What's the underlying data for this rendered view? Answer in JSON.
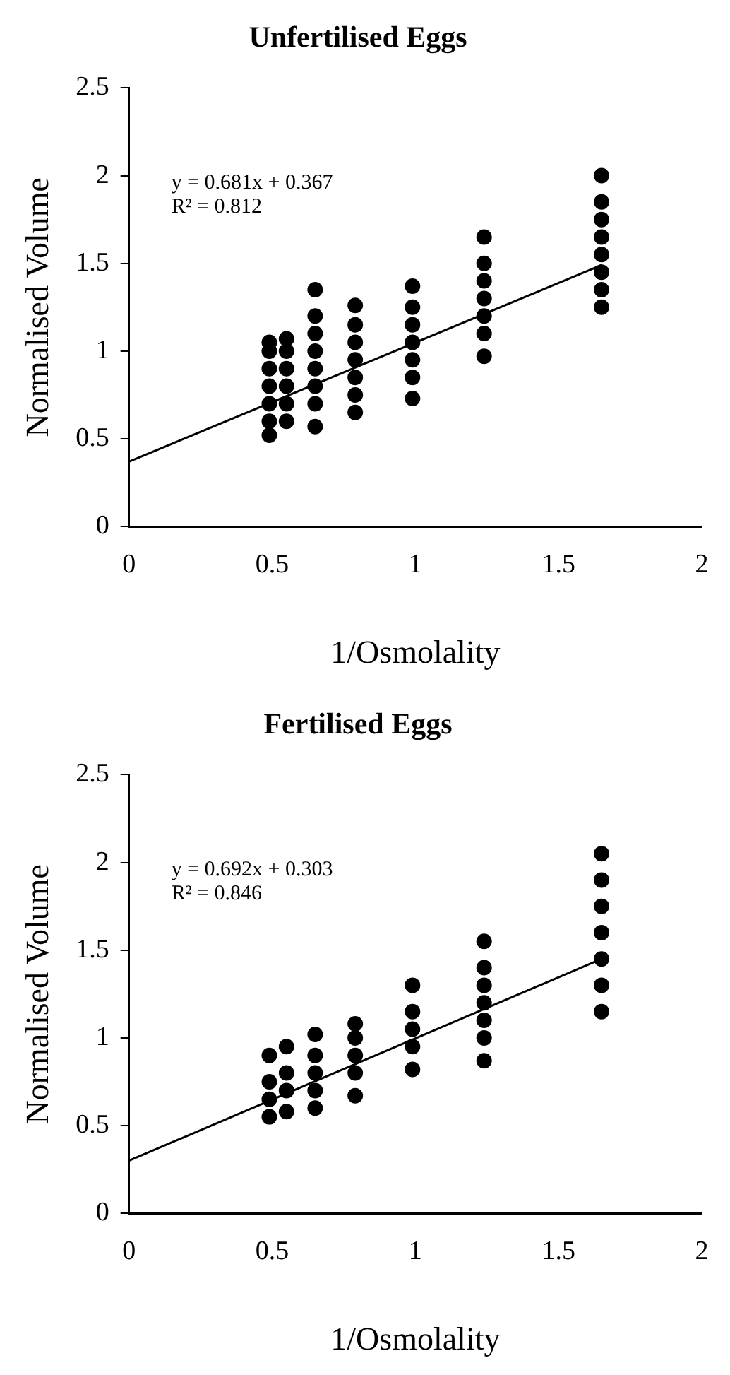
{
  "chart_data": [
    {
      "type": "scatter",
      "title": "Unfertilised Eggs",
      "xlabel": "1/Osmolality",
      "ylabel": "Normalised Volume",
      "xlim": [
        0,
        2
      ],
      "xticks": [
        0,
        0.5,
        1,
        1.5,
        2
      ],
      "ylim": [
        0,
        2.5
      ],
      "yticks": [
        0,
        0.5,
        1,
        1.5,
        2,
        2.5
      ],
      "grid": false,
      "legend": false,
      "annotations": [
        "y = 0.681x + 0.367",
        "R² = 0.812"
      ],
      "series": [
        {
          "type": "scatter",
          "marker": "circle",
          "color": "#000000",
          "x": [
            0.49,
            0.49,
            0.49,
            0.49,
            0.49,
            0.49,
            0.49,
            0.55,
            0.55,
            0.55,
            0.55,
            0.55,
            0.55,
            0.65,
            0.65,
            0.65,
            0.65,
            0.65,
            0.65,
            0.65,
            0.65,
            0.79,
            0.79,
            0.79,
            0.79,
            0.79,
            0.79,
            0.79,
            0.99,
            0.99,
            0.99,
            0.99,
            0.99,
            0.99,
            0.99,
            1.24,
            1.24,
            1.24,
            1.24,
            1.24,
            1.24,
            1.24,
            1.65,
            1.65,
            1.65,
            1.65,
            1.65,
            1.65,
            1.65,
            1.65
          ],
          "values": [
            0.52,
            0.6,
            0.7,
            0.8,
            0.9,
            1.0,
            1.05,
            0.6,
            0.7,
            0.8,
            0.9,
            1.0,
            1.07,
            0.57,
            0.7,
            0.8,
            0.9,
            1.0,
            1.1,
            1.2,
            1.35,
            0.65,
            0.75,
            0.85,
            0.95,
            1.05,
            1.15,
            1.26,
            0.73,
            0.85,
            0.95,
            1.05,
            1.15,
            1.25,
            1.37,
            0.97,
            1.1,
            1.2,
            1.3,
            1.4,
            1.5,
            1.65,
            1.25,
            1.35,
            1.45,
            1.55,
            1.65,
            1.75,
            1.85,
            2.0
          ]
        },
        {
          "type": "line",
          "color": "#000000",
          "x": [
            0,
            1.65
          ],
          "values": [
            0.37,
            1.49
          ]
        }
      ]
    },
    {
      "type": "scatter",
      "title": "Fertilised Eggs",
      "xlabel": "1/Osmolality",
      "ylabel": "Normalised Volume",
      "xlim": [
        0,
        2
      ],
      "xticks": [
        0,
        0.5,
        1,
        1.5,
        2
      ],
      "ylim": [
        0,
        2.5
      ],
      "yticks": [
        0,
        0.5,
        1,
        1.5,
        2,
        2.5
      ],
      "grid": false,
      "legend": false,
      "annotations": [
        "y = 0.692x + 0.303",
        "R² = 0.846"
      ],
      "series": [
        {
          "type": "scatter",
          "marker": "circle",
          "color": "#000000",
          "x": [
            0.49,
            0.49,
            0.49,
            0.49,
            0.55,
            0.55,
            0.55,
            0.55,
            0.65,
            0.65,
            0.65,
            0.65,
            0.65,
            0.79,
            0.79,
            0.79,
            0.79,
            0.79,
            0.99,
            0.99,
            0.99,
            0.99,
            0.99,
            1.24,
            1.24,
            1.24,
            1.24,
            1.24,
            1.24,
            1.24,
            1.65,
            1.65,
            1.65,
            1.65,
            1.65,
            1.65,
            1.65
          ],
          "values": [
            0.55,
            0.65,
            0.75,
            0.9,
            0.58,
            0.7,
            0.8,
            0.95,
            0.6,
            0.7,
            0.8,
            0.9,
            1.02,
            0.67,
            0.8,
            0.9,
            1.0,
            1.08,
            0.82,
            0.95,
            1.05,
            1.15,
            1.3,
            0.87,
            1.0,
            1.1,
            1.2,
            1.3,
            1.4,
            1.55,
            1.15,
            1.3,
            1.45,
            1.6,
            1.75,
            1.9,
            2.05
          ]
        },
        {
          "type": "line",
          "color": "#000000",
          "x": [
            0,
            1.65
          ],
          "values": [
            0.3,
            1.45
          ]
        }
      ]
    }
  ]
}
